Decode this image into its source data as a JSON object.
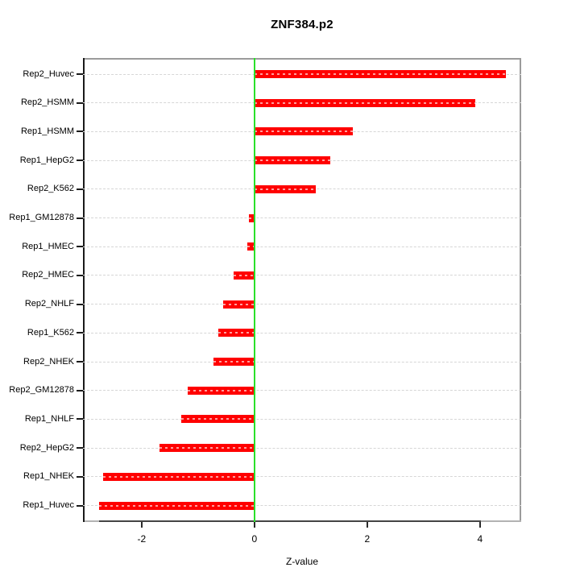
{
  "chart_data": {
    "type": "bar",
    "orientation": "horizontal",
    "title": "ZNF384.p2",
    "xlabel": "Z-value",
    "categories": [
      "Rep2_Huvec",
      "Rep2_HSMM",
      "Rep1_HSMM",
      "Rep1_HepG2",
      "Rep2_K562",
      "Rep1_GM12878",
      "Rep1_HMEC",
      "Rep2_HMEC",
      "Rep2_NHLF",
      "Rep1_K562",
      "Rep2_NHEK",
      "Rep2_GM12878",
      "Rep1_NHLF",
      "Rep2_HepG2",
      "Rep1_NHEK",
      "Rep1_Huvec"
    ],
    "values": [
      4.46,
      3.91,
      1.75,
      1.34,
      1.09,
      -0.1,
      -0.12,
      -0.37,
      -0.55,
      -0.64,
      -0.73,
      -1.19,
      -1.3,
      -1.69,
      -2.69,
      -2.76
    ],
    "xticks": [
      -2,
      0,
      2,
      4
    ],
    "xtick_labels": [
      "-2",
      "0",
      "2",
      "4"
    ],
    "xlim": [
      -3.04,
      4.73
    ],
    "grid": true,
    "legend": null,
    "bar_color": "#ff0000",
    "zero_line_color": "#2ae02a",
    "gridline_color": "#d6d6d6"
  }
}
